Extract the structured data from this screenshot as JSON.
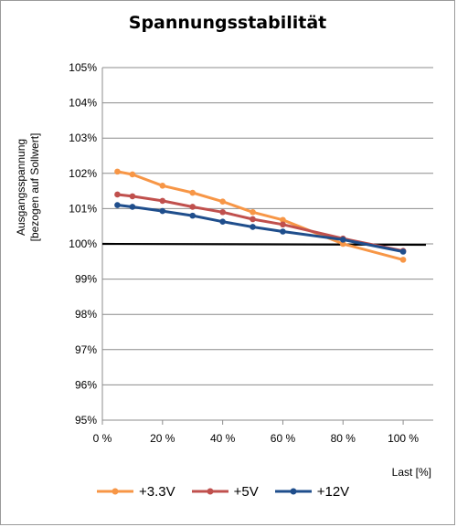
{
  "chart_data": {
    "type": "line",
    "title": "Spannungsstabilität",
    "ylabel": "Ausgangsspannung [bezogen auf Sollwert]",
    "ylabel_lines": [
      "Ausgangsspannung",
      "[bezogen auf Sollwert]"
    ],
    "xlabel": "Last [%]",
    "xlim": [
      0,
      110
    ],
    "ylim": [
      95,
      105
    ],
    "xticks": [
      0,
      20,
      40,
      60,
      80,
      100
    ],
    "xtick_labels": [
      "0 %",
      "20 %",
      "40 %",
      "60 %",
      "80 %",
      "100 %"
    ],
    "yticks": [
      95,
      96,
      97,
      98,
      99,
      100,
      101,
      102,
      103,
      104,
      105
    ],
    "ytick_labels": [
      "95%",
      "96%",
      "97%",
      "98%",
      "99%",
      "100%",
      "101%",
      "102%",
      "103%",
      "104%",
      "105%"
    ],
    "grid": "horizontal",
    "legend_position": "bottom",
    "reference_line": {
      "y": 100,
      "color": "#000000"
    },
    "series": [
      {
        "name": "+3.3V",
        "color": "#f79646",
        "x": [
          5,
          10,
          20,
          30,
          40,
          50,
          60,
          80,
          100
        ],
        "y": [
          102.05,
          101.97,
          101.65,
          101.45,
          101.2,
          100.9,
          100.68,
          100.0,
          99.55
        ]
      },
      {
        "name": "+5V",
        "color": "#c0504d",
        "x": [
          5,
          10,
          20,
          30,
          40,
          50,
          60,
          80,
          100
        ],
        "y": [
          101.4,
          101.35,
          101.22,
          101.05,
          100.9,
          100.7,
          100.55,
          100.15,
          99.8
        ]
      },
      {
        "name": "+12V",
        "color": "#1f4e8c",
        "x": [
          5,
          10,
          20,
          30,
          40,
          50,
          60,
          80,
          100
        ],
        "y": [
          101.1,
          101.05,
          100.93,
          100.8,
          100.63,
          100.48,
          100.35,
          100.12,
          99.78
        ]
      }
    ]
  }
}
